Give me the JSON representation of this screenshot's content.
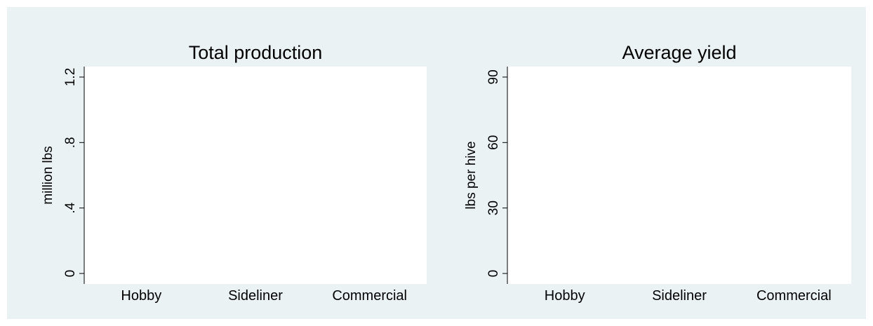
{
  "chart_data": [
    {
      "type": "bar",
      "title": "Total production",
      "y_label": "million lbs",
      "categories": [
        "Hobby",
        "Sideliner",
        "Commercial"
      ],
      "ylim": [
        -0.064,
        1.264
      ],
      "yticks": [
        0,
        {
          "value": 0.4,
          "label": ".4"
        },
        {
          "value": 0.8,
          "label": ".8"
        },
        1.2
      ]
    },
    {
      "type": "bar",
      "title": "Average yield",
      "y_label": "lbs per hive",
      "categories": [
        "Hobby",
        "Sideliner",
        "Commercial"
      ],
      "ylim": [
        -4.8,
        94.8
      ],
      "yticks": [
        0,
        30,
        60,
        90
      ]
    }
  ]
}
